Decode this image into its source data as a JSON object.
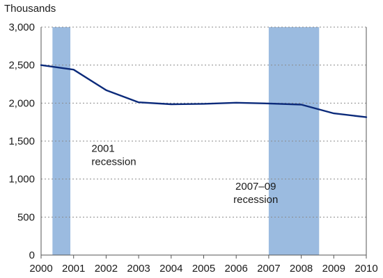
{
  "chart_data": {
    "type": "line",
    "title": "",
    "ylabel": "Thousands",
    "xlabel": "",
    "x": [
      2000,
      2000.5,
      2001,
      2002,
      2003,
      2004,
      2005,
      2006,
      2007,
      2008,
      2009,
      2010
    ],
    "series": [
      {
        "values": [
          2500,
          2470,
          2440,
          2170,
          2010,
          1985,
          1990,
          2005,
          1995,
          1980,
          1865,
          1815
        ],
        "color": "#0b2a7a"
      }
    ],
    "xlim": [
      2000,
      2010
    ],
    "ylim": [
      0,
      3000
    ],
    "x_ticks": [
      "2000",
      "2001",
      "2002",
      "2003",
      "2004",
      "2005",
      "2006",
      "2007",
      "2008",
      "2009",
      "2010"
    ],
    "y_ticks": [
      "0",
      "500",
      "1,000",
      "1,500",
      "2,000",
      "2,500",
      "3,000"
    ],
    "y_tick_values": [
      0,
      500,
      1000,
      1500,
      2000,
      2500,
      3000
    ],
    "grid": "horizontal dotted",
    "recessions": [
      {
        "start": 2000.35,
        "end": 2000.9,
        "color": "#9bbbe0"
      },
      {
        "start": 2007.0,
        "end": 2008.55,
        "color": "#9bbbe0"
      }
    ],
    "annotations": [
      {
        "lines": [
          "2001",
          "recession"
        ],
        "x": 2001.55,
        "y": 1360,
        "anchor": "start"
      },
      {
        "lines": [
          "2007–09",
          "recession"
        ],
        "x": 2006.6,
        "y": 860,
        "anchor": "middle"
      }
    ]
  }
}
